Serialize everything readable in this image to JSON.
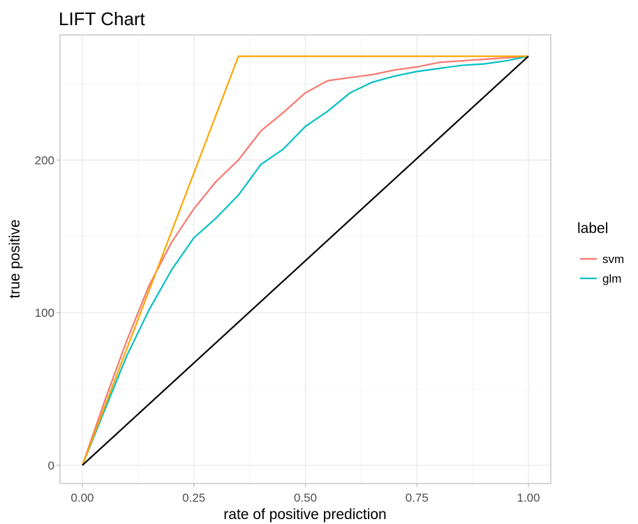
{
  "chart_data": {
    "type": "line",
    "title": "LIFT Chart",
    "xlabel": "rate of positive prediction",
    "ylabel": "true positive",
    "xlim": [
      -0.05,
      1.05
    ],
    "ylim": [
      -12,
      282
    ],
    "x_ticks": [
      0.0,
      0.25,
      0.5,
      0.75,
      1.0
    ],
    "x_tick_labels": [
      "0.00",
      "0.25",
      "0.50",
      "0.75",
      "1.00"
    ],
    "y_ticks": [
      0,
      100,
      200
    ],
    "y_tick_labels": [
      "0",
      "100",
      "200"
    ],
    "grid": true,
    "legend": {
      "title": "label",
      "position": "right",
      "entries": [
        "svm",
        "glm"
      ]
    },
    "series": [
      {
        "name": "svm",
        "color": "#F8766D",
        "x": [
          0,
          0.05,
          0.1,
          0.15,
          0.2,
          0.25,
          0.3,
          0.35,
          0.4,
          0.45,
          0.5,
          0.55,
          0.6,
          0.65,
          0.7,
          0.75,
          0.8,
          0.85,
          0.9,
          0.95,
          1.0
        ],
        "y": [
          0,
          42,
          82,
          118,
          146,
          168,
          186,
          200,
          219,
          231,
          244,
          252,
          254,
          256,
          259,
          261,
          264,
          265,
          266,
          267,
          268
        ]
      },
      {
        "name": "glm",
        "color": "#00BFC4",
        "x": [
          0,
          0.05,
          0.1,
          0.15,
          0.2,
          0.25,
          0.3,
          0.35,
          0.4,
          0.45,
          0.5,
          0.55,
          0.6,
          0.65,
          0.7,
          0.75,
          0.8,
          0.85,
          0.9,
          0.95,
          1.0
        ],
        "y": [
          0,
          36,
          72,
          102,
          128,
          149,
          162,
          177,
          197,
          207,
          222,
          232,
          244,
          251,
          255,
          258,
          260,
          262,
          263,
          265,
          268
        ]
      },
      {
        "color": "#FFA500",
        "x": [
          0,
          0.35,
          1.0
        ],
        "y": [
          0,
          268,
          268
        ]
      },
      {
        "color": "#000000",
        "x": [
          0,
          1.0
        ],
        "y": [
          0,
          268
        ]
      }
    ]
  }
}
